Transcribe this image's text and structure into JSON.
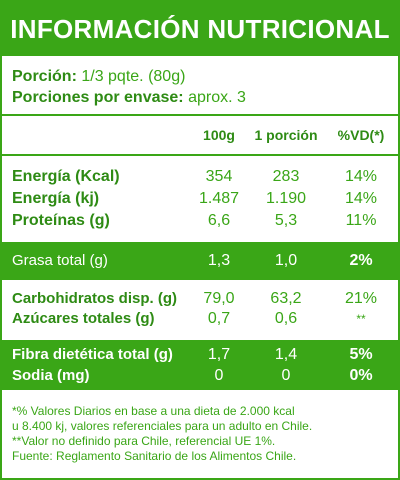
{
  "title": "INFORMACIÓN NUTRICIONAL",
  "portion": {
    "label": "Porción:",
    "value": "1/3 pqte. (80g)",
    "per_package_label": "Porciones por envase:",
    "per_package_value": "aprox. 3"
  },
  "columns": [
    "100g",
    "1 porción",
    "%VD(*)"
  ],
  "rows_group1": [
    {
      "label": "Energía (Kcal)",
      "v100": "354",
      "vportion": "283",
      "vd": "14%"
    },
    {
      "label": "Energía (kj)",
      "v100": "1.487",
      "vportion": "1.190",
      "vd": "14%"
    },
    {
      "label": "Proteínas (g)",
      "v100": "6,6",
      "vportion": "5,3",
      "vd": "11%"
    }
  ],
  "row_fat": {
    "label": "Grasa total (g)",
    "v100": "1,3",
    "vportion": "1,0",
    "vd": "2%"
  },
  "rows_group2": [
    {
      "label": "Carbohidratos disp. (g)",
      "v100": "79,0",
      "vportion": "63,2",
      "vd": "21%"
    },
    {
      "label": "Azúcares totales (g)",
      "v100": "0,7",
      "vportion": "0,6",
      "vd": "**"
    }
  ],
  "rows_group3": [
    {
      "label": "Fibra dietética total (g)",
      "v100": "1,7",
      "vportion": "1,4",
      "vd": "5%"
    },
    {
      "label": "Sodia (mg)",
      "v100": "0",
      "vportion": "0",
      "vd": "0%"
    }
  ],
  "footer": [
    "*% Valores Diarios en base a una dieta de 2.000 kcal",
    "u 8.400 kj, valores referenciales para un adulto en Chile.",
    "**Valor no definido para Chile, referencial UE 1%.",
    "Fuente: Reglamento Sanitario de los Alimentos Chile."
  ],
  "colors": {
    "brand_green": "#3aa617",
    "text_green": "#2e8b14"
  }
}
